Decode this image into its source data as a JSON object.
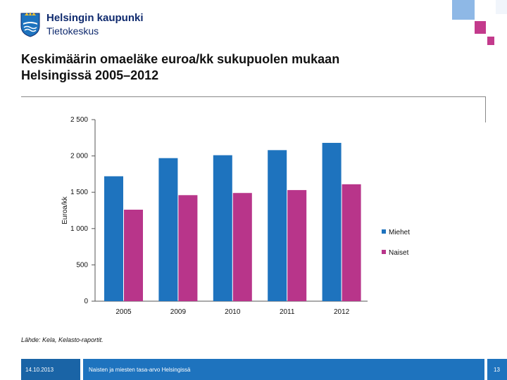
{
  "brand": {
    "name": "Helsingin kaupunki",
    "unit": "Tietokeskus"
  },
  "slide": {
    "title_line1": "Keskimäärin omaeläke euroa/kk sukupuolen mukaan",
    "title_line2": "Helsingissä 2005–2012",
    "source": "Lähde: Kela, Kelasto-raportit."
  },
  "footer": {
    "date": "14.10.2013",
    "subtitle": "Naisten ja miesten tasa-arvo Helsingissä",
    "page": "13"
  },
  "colors": {
    "men": "#1e73be",
    "women": "#b8358a",
    "accent_light_blue": "#8eb8e6",
    "accent_pink": "#c33a8c"
  },
  "chart_data": {
    "type": "bar",
    "title": "",
    "xlabel": "",
    "ylabel": "Euroa/kk",
    "ylim": [
      0,
      2500
    ],
    "yticks": [
      0,
      500,
      1000,
      1500,
      2000,
      2500
    ],
    "ytick_labels": [
      "0",
      "500",
      "1 000",
      "1 500",
      "2 000",
      "2 500"
    ],
    "categories": [
      "2005",
      "2009",
      "2010",
      "2011",
      "2012"
    ],
    "series": [
      {
        "name": "Miehet",
        "values": [
          1720,
          1970,
          2010,
          2080,
          2180
        ]
      },
      {
        "name": "Naiset",
        "values": [
          1260,
          1460,
          1490,
          1530,
          1610
        ]
      }
    ],
    "legend_position": "right"
  }
}
